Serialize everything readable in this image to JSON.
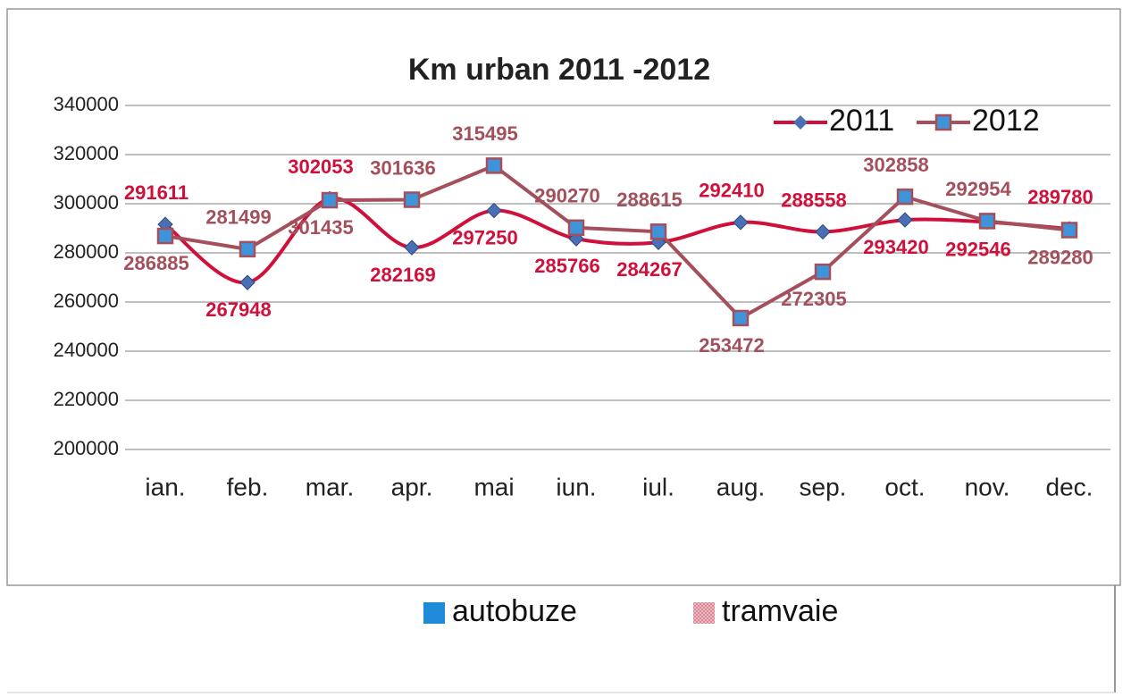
{
  "chart_data": {
    "type": "line",
    "title": "Km urban 2011 -2012",
    "categories": [
      "ian.",
      "feb.",
      "mar.",
      "apr.",
      "mai",
      "iun.",
      "iul.",
      "aug.",
      "sep.",
      "oct.",
      "nov.",
      "dec."
    ],
    "series": [
      {
        "name": "2011",
        "color": "#d0103a",
        "marker": "diamond",
        "marker_color": "#4a6fb5",
        "smooth": true,
        "values": [
          291611,
          267948,
          302053,
          282169,
          297250,
          285766,
          284267,
          292410,
          288558,
          293420,
          292546,
          289780
        ]
      },
      {
        "name": "2012",
        "color": "#a4505c",
        "marker": "square",
        "marker_color": "#3f93d8",
        "smooth": false,
        "values": [
          286885,
          281499,
          301435,
          301636,
          315495,
          290270,
          288615,
          253472,
          272305,
          302858,
          292954,
          289280
        ]
      }
    ],
    "ylim": [
      200000,
      340000
    ],
    "yticks": [
      200000,
      220000,
      240000,
      260000,
      280000,
      300000,
      320000,
      340000
    ],
    "grid": true,
    "legend": "top-right",
    "data_labels": true,
    "extra_legend": [
      {
        "name": "autobuze",
        "color": "#1f8ad8"
      },
      {
        "name": "tramvaie",
        "color": "#e8a0a8"
      }
    ]
  }
}
